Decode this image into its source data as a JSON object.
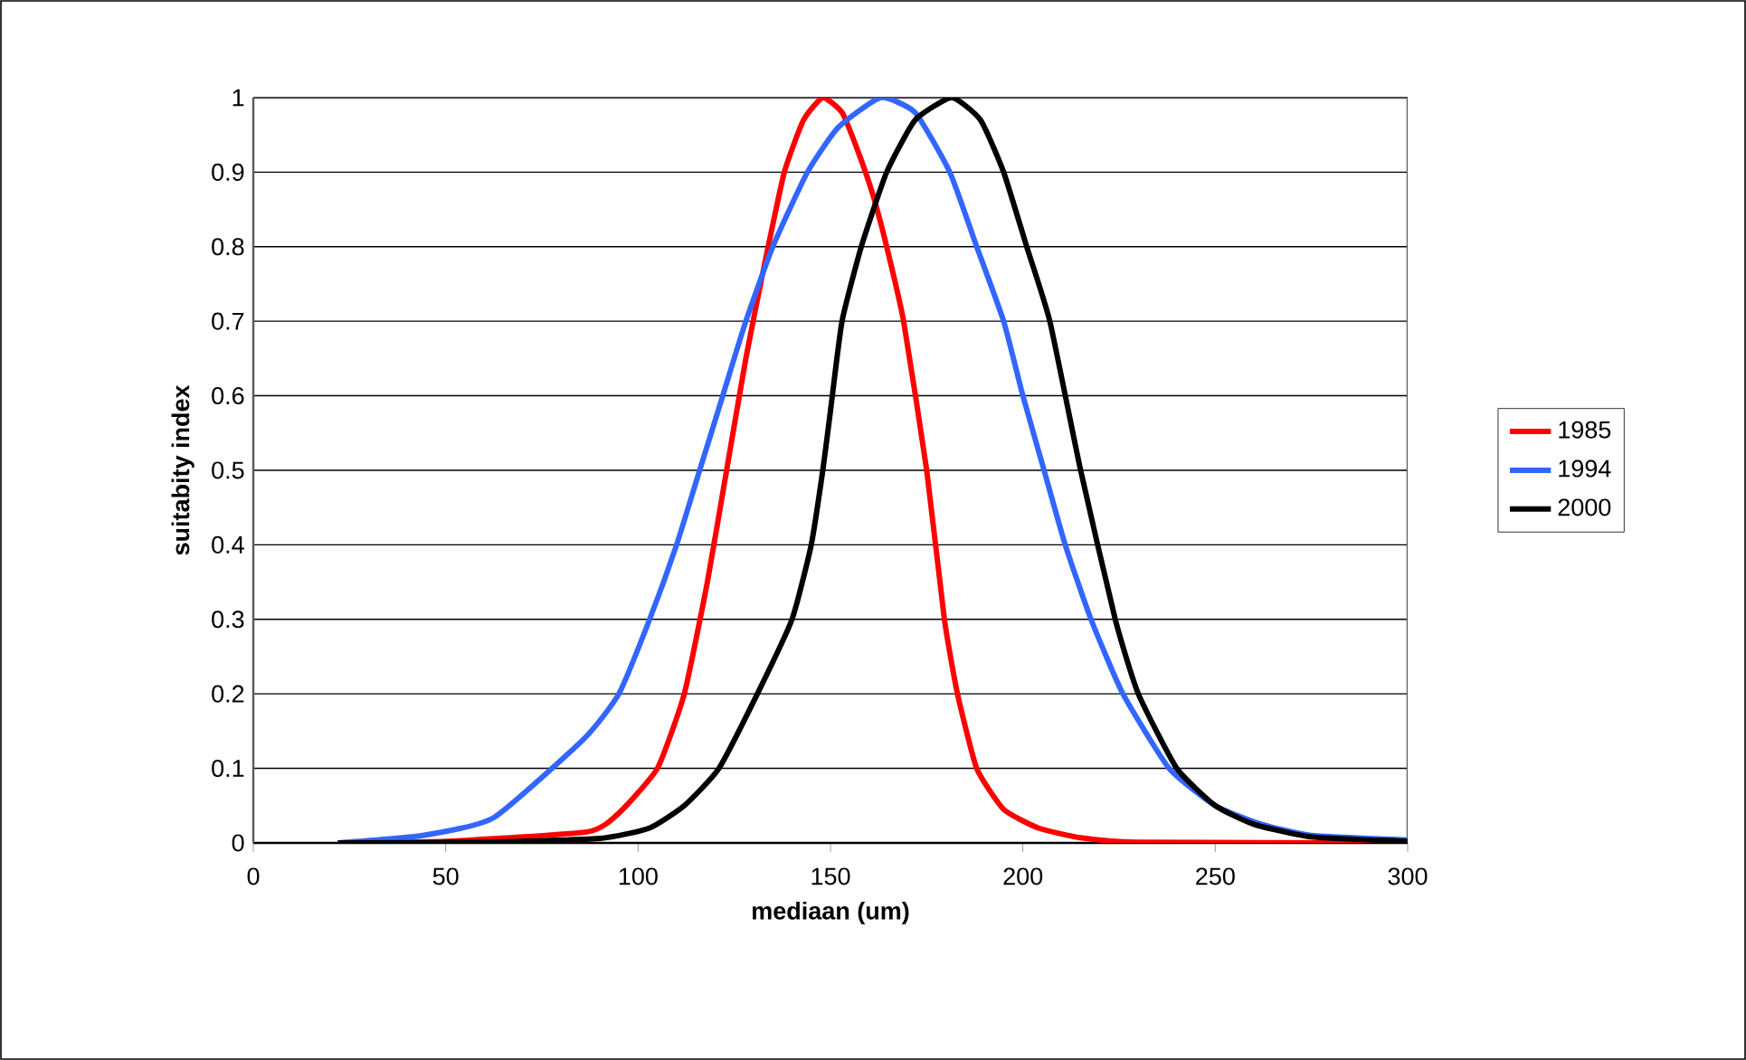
{
  "chart_data": {
    "type": "line",
    "xlabel": "mediaan (um)",
    "ylabel": "suitabity index",
    "xlim": [
      0,
      300
    ],
    "xticks": [
      0,
      50,
      100,
      150,
      200,
      250,
      300
    ],
    "ylim": [
      0,
      1
    ],
    "yticks": [
      0,
      0.1,
      0.2,
      0.3,
      0.4,
      0.5,
      0.6,
      0.7,
      0.8,
      0.9,
      1
    ],
    "grid": "y",
    "legend": "right",
    "marker": "none",
    "line_style": "solid",
    "series": [
      {
        "name": "1985",
        "color": "#ff0000",
        "x": [
          22,
          50,
          87,
          95,
          105,
          112,
          118,
          123,
          128,
          133,
          138,
          143,
          148,
          153,
          157,
          161,
          164.6,
          169,
          175,
          179.6,
          183,
          188,
          195,
          204,
          215,
          230,
          300
        ],
        "values": [
          0,
          0.002,
          0.015,
          0.04,
          0.1,
          0.2,
          0.35,
          0.5,
          0.65,
          0.78,
          0.9,
          0.97,
          1,
          0.98,
          0.93,
          0.87,
          0.8,
          0.7,
          0.5,
          0.3,
          0.2,
          0.1,
          0.045,
          0.02,
          0.007,
          0.001,
          0
        ]
      },
      {
        "name": "1994",
        "color": "#3366ff",
        "x": [
          22,
          44,
          62.5,
          86,
          95,
          103,
          110,
          116,
          122,
          128,
          135,
          144,
          152,
          163,
          172,
          181,
          188,
          195,
          200,
          205.5,
          211,
          217.7,
          226,
          238,
          250,
          262,
          275,
          300
        ],
        "values": [
          0,
          0.01,
          0.034,
          0.14,
          0.2,
          0.3,
          0.4,
          0.5,
          0.6,
          0.7,
          0.8,
          0.9,
          0.96,
          1,
          0.98,
          0.9,
          0.8,
          0.7,
          0.6,
          0.5,
          0.4,
          0.3,
          0.2,
          0.1,
          0.05,
          0.025,
          0.01,
          0.004
        ]
      },
      {
        "name": "2000",
        "color": "#000000",
        "x": [
          22,
          60,
          90,
          103,
          112,
          121,
          131,
          140,
          145,
          148,
          150,
          153,
          158,
          164.6,
          172,
          181.5,
          189,
          195,
          201,
          207,
          215,
          224,
          230,
          240,
          250,
          260,
          275,
          300
        ],
        "values": [
          0,
          0.001,
          0.006,
          0.02,
          0.05,
          0.1,
          0.2,
          0.3,
          0.4,
          0.5,
          0.58,
          0.7,
          0.8,
          0.9,
          0.97,
          1,
          0.97,
          0.9,
          0.8,
          0.7,
          0.5,
          0.3,
          0.2,
          0.1,
          0.05,
          0.025,
          0.008,
          0.002
        ]
      }
    ]
  }
}
